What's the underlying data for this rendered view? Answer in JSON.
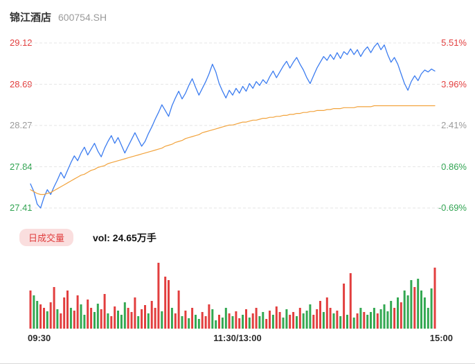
{
  "header": {
    "title": "锦江酒店",
    "code": "600754.SH"
  },
  "colors": {
    "up": "#e23e3e",
    "down": "#33a852",
    "neutral": "#9a9a9a",
    "price_line": "#3b7cf0",
    "avg_line": "#f2a33c",
    "grid": "#e6e6e6",
    "badge_bg": "#fadede",
    "badge_text": "#e03e3e"
  },
  "chart_data": {
    "type": "line",
    "title": "锦江酒店 600754.SH",
    "x_ticks": [
      "09:30",
      "11:30/13:00",
      "15:00"
    ],
    "ylim": [
      27.41,
      29.12
    ],
    "y_axis": [
      {
        "price": "29.12",
        "pct": "5.51%",
        "color": "#e23e3e"
      },
      {
        "price": "28.69",
        "pct": "3.96%",
        "color": "#e23e3e"
      },
      {
        "price": "28.27",
        "pct": "2.41%",
        "color": "#9a9a9a"
      },
      {
        "price": "27.84",
        "pct": "0.86%",
        "color": "#2fa350"
      },
      {
        "price": "27.41",
        "pct": "-0.69%",
        "color": "#2fa350"
      }
    ],
    "series": [
      {
        "name": "price",
        "color": "#3b7cf0",
        "width": 1.3,
        "values": [
          27.66,
          27.58,
          27.45,
          27.41,
          27.52,
          27.6,
          27.55,
          27.63,
          27.7,
          27.78,
          27.72,
          27.8,
          27.88,
          27.95,
          27.9,
          27.98,
          28.04,
          27.96,
          28.02,
          28.08,
          28.0,
          27.94,
          28.03,
          28.1,
          28.16,
          28.08,
          28.14,
          28.06,
          27.98,
          28.05,
          28.12,
          28.19,
          28.12,
          28.05,
          28.1,
          28.18,
          28.25,
          28.33,
          28.4,
          28.48,
          28.42,
          28.36,
          28.47,
          28.55,
          28.62,
          28.54,
          28.6,
          28.68,
          28.75,
          28.66,
          28.58,
          28.65,
          28.72,
          28.8,
          28.9,
          28.82,
          28.7,
          28.62,
          28.55,
          28.63,
          28.58,
          28.65,
          28.6,
          28.67,
          28.62,
          28.7,
          28.65,
          28.72,
          28.68,
          28.74,
          28.7,
          28.77,
          28.83,
          28.76,
          28.82,
          28.88,
          28.93,
          28.86,
          28.92,
          28.97,
          28.9,
          28.84,
          28.76,
          28.7,
          28.78,
          28.86,
          28.92,
          28.98,
          28.94,
          29.0,
          28.95,
          29.02,
          28.96,
          29.03,
          29.0,
          29.06,
          29.0,
          29.05,
          28.98,
          29.04,
          29.08,
          29.02,
          29.08,
          29.12,
          29.05,
          29.1,
          29.0,
          28.92,
          28.97,
          28.9,
          28.8,
          28.7,
          28.63,
          28.72,
          28.78,
          28.73,
          28.8,
          28.84,
          28.82,
          28.85,
          28.83
        ]
      },
      {
        "name": "avg",
        "color": "#f2a33c",
        "width": 1.2,
        "values": [
          27.6,
          27.58,
          27.56,
          27.55,
          27.55,
          27.56,
          27.57,
          27.59,
          27.61,
          27.63,
          27.65,
          27.67,
          27.69,
          27.71,
          27.73,
          27.75,
          27.76,
          27.78,
          27.8,
          27.81,
          27.83,
          27.84,
          27.85,
          27.87,
          27.88,
          27.89,
          27.9,
          27.91,
          27.92,
          27.93,
          27.94,
          27.95,
          27.96,
          27.97,
          27.98,
          27.99,
          28.0,
          28.01,
          28.02,
          28.03,
          28.05,
          28.06,
          28.07,
          28.09,
          28.1,
          28.11,
          28.13,
          28.14,
          28.15,
          28.16,
          28.17,
          28.19,
          28.2,
          28.21,
          28.22,
          28.23,
          28.24,
          28.25,
          28.26,
          28.27,
          28.27,
          28.28,
          28.29,
          28.3,
          28.3,
          28.31,
          28.32,
          28.32,
          28.33,
          28.34,
          28.34,
          28.35,
          28.35,
          28.36,
          28.36,
          28.37,
          28.37,
          28.38,
          28.38,
          28.39,
          28.39,
          28.4,
          28.4,
          28.41,
          28.41,
          28.42,
          28.42,
          28.42,
          28.43,
          28.43,
          28.44,
          28.44,
          28.44,
          28.45,
          28.45,
          28.45,
          28.45,
          28.46,
          28.46,
          28.46,
          28.46,
          28.46,
          28.47,
          28.47,
          28.47,
          28.47,
          28.47,
          28.47,
          28.47,
          28.47,
          28.47,
          28.47,
          28.47,
          28.47,
          28.47,
          28.47,
          28.47,
          28.47,
          28.47,
          28.47,
          28.47
        ]
      }
    ],
    "volume": {
      "label": "日成交量",
      "text": "vol: 24.65万手",
      "value": 24.65,
      "unit": "万手",
      "bars": [
        55,
        48,
        40,
        35,
        30,
        25,
        38,
        60,
        28,
        22,
        45,
        55,
        30,
        26,
        48,
        35,
        20,
        42,
        30,
        24,
        36,
        28,
        50,
        22,
        18,
        32,
        26,
        20,
        38,
        30,
        24,
        45,
        18,
        28,
        34,
        22,
        40,
        30,
        95,
        25,
        75,
        70,
        30,
        22,
        55,
        18,
        26,
        15,
        30,
        20,
        14,
        24,
        18,
        35,
        28,
        12,
        20,
        16,
        30,
        22,
        18,
        25,
        15,
        20,
        28,
        16,
        22,
        30,
        18,
        24,
        14,
        26,
        20,
        32,
        24,
        16,
        28,
        20,
        24,
        18,
        30,
        22,
        26,
        35,
        20,
        28,
        40,
        24,
        45,
        30,
        22,
        26,
        18,
        65,
        20,
        80,
        16,
        22,
        30,
        24,
        20,
        24,
        30,
        22,
        28,
        35,
        25,
        40,
        30,
        45,
        38,
        55,
        48,
        70,
        60,
        72,
        55,
        45,
        30,
        58,
        88
      ],
      "bar_colors": "rggrrgrrgrrrgrrggrrggrrgrrgggrrrgrrgrrrgrrgrrgrgrggrrrggrggrgrrgrgrrggrrgrrggrrgrgggrrrgrrgrgrgrgrgrgggrggggrgrgggrgggggr"
    }
  }
}
